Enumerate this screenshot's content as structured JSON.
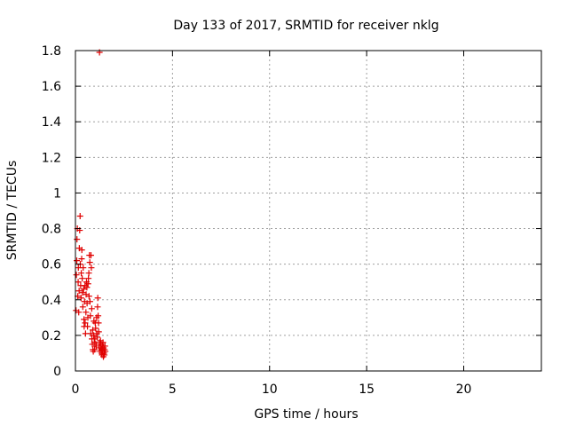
{
  "chart_data": {
    "type": "scatter",
    "title": "Day 133 of 2017, SRMTID for receiver nklg",
    "xlabel": "GPS time / hours",
    "ylabel": "SRMTID / TECUs",
    "xlim": [
      0,
      24
    ],
    "ylim": [
      0,
      1.8
    ],
    "x_ticks": [
      "0",
      "5",
      "10",
      "15",
      "20"
    ],
    "y_ticks": [
      "0",
      "0.2",
      "0.4",
      "0.6",
      "0.8",
      "1",
      "1.2",
      "1.4",
      "1.6",
      "1.8"
    ],
    "grid": true,
    "marker": "+",
    "color": "#e00000",
    "points": [
      [
        0.03,
        0.34
      ],
      [
        0.05,
        0.54
      ],
      [
        0.07,
        0.62
      ],
      [
        0.08,
        0.74
      ],
      [
        0.1,
        0.8
      ],
      [
        0.12,
        0.42
      ],
      [
        0.14,
        0.5
      ],
      [
        0.15,
        0.58
      ],
      [
        0.17,
        0.33
      ],
      [
        0.19,
        0.45
      ],
      [
        0.2,
        0.69
      ],
      [
        0.22,
        0.79
      ],
      [
        0.24,
        0.87
      ],
      [
        0.25,
        0.6
      ],
      [
        0.27,
        0.48
      ],
      [
        0.29,
        0.41
      ],
      [
        0.3,
        0.55
      ],
      [
        0.32,
        0.63
      ],
      [
        0.33,
        0.68
      ],
      [
        0.35,
        0.52
      ],
      [
        0.37,
        0.44
      ],
      [
        0.38,
        0.36
      ],
      [
        0.4,
        0.58
      ],
      [
        0.42,
        0.46
      ],
      [
        0.44,
        0.29
      ],
      [
        0.45,
        0.25
      ],
      [
        0.47,
        0.39
      ],
      [
        0.49,
        0.48
      ],
      [
        0.5,
        0.27
      ],
      [
        0.52,
        0.21
      ],
      [
        0.54,
        0.33
      ],
      [
        0.55,
        0.43
      ],
      [
        0.57,
        0.5
      ],
      [
        0.59,
        0.47
      ],
      [
        0.6,
        0.38
      ],
      [
        0.62,
        0.25
      ],
      [
        0.64,
        0.3
      ],
      [
        0.65,
        0.49
      ],
      [
        0.67,
        0.52
      ],
      [
        0.69,
        0.55
      ],
      [
        0.7,
        0.42
      ],
      [
        0.72,
        0.65
      ],
      [
        0.74,
        0.61
      ],
      [
        0.75,
        0.39
      ],
      [
        0.77,
        0.31
      ],
      [
        0.79,
        0.21
      ],
      [
        0.8,
        0.65
      ],
      [
        0.82,
        0.58
      ],
      [
        0.84,
        0.35
      ],
      [
        0.85,
        0.18
      ],
      [
        0.87,
        0.15
      ],
      [
        0.89,
        0.23
      ],
      [
        0.9,
        0.12
      ],
      [
        0.92,
        0.11
      ],
      [
        0.94,
        0.2
      ],
      [
        0.95,
        0.28
      ],
      [
        0.97,
        0.16
      ],
      [
        0.99,
        0.12
      ],
      [
        1.0,
        0.18
      ],
      [
        1.02,
        0.27
      ],
      [
        1.04,
        0.24
      ],
      [
        1.05,
        0.15
      ],
      [
        1.07,
        0.14
      ],
      [
        1.09,
        0.3
      ],
      [
        1.1,
        0.21
      ],
      [
        1.12,
        0.19
      ],
      [
        1.14,
        0.36
      ],
      [
        1.15,
        0.41
      ],
      [
        1.17,
        0.31
      ],
      [
        1.19,
        0.27
      ],
      [
        1.2,
        0.22
      ],
      [
        1.22,
        0.13
      ],
      [
        1.24,
        1.79
      ],
      [
        1.25,
        0.16
      ],
      [
        1.27,
        0.11
      ],
      [
        1.29,
        0.17
      ],
      [
        1.3,
        0.13
      ],
      [
        1.32,
        0.15
      ],
      [
        1.34,
        0.1
      ],
      [
        1.35,
        0.12
      ],
      [
        1.37,
        0.09
      ],
      [
        1.39,
        0.14
      ],
      [
        1.4,
        0.11
      ],
      [
        1.42,
        0.16
      ],
      [
        1.44,
        0.08
      ],
      [
        1.45,
        0.13
      ],
      [
        1.47,
        0.1
      ],
      [
        1.49,
        0.09
      ],
      [
        1.5,
        0.12
      ],
      [
        1.52,
        0.14
      ],
      [
        1.54,
        0.11
      ]
    ]
  }
}
